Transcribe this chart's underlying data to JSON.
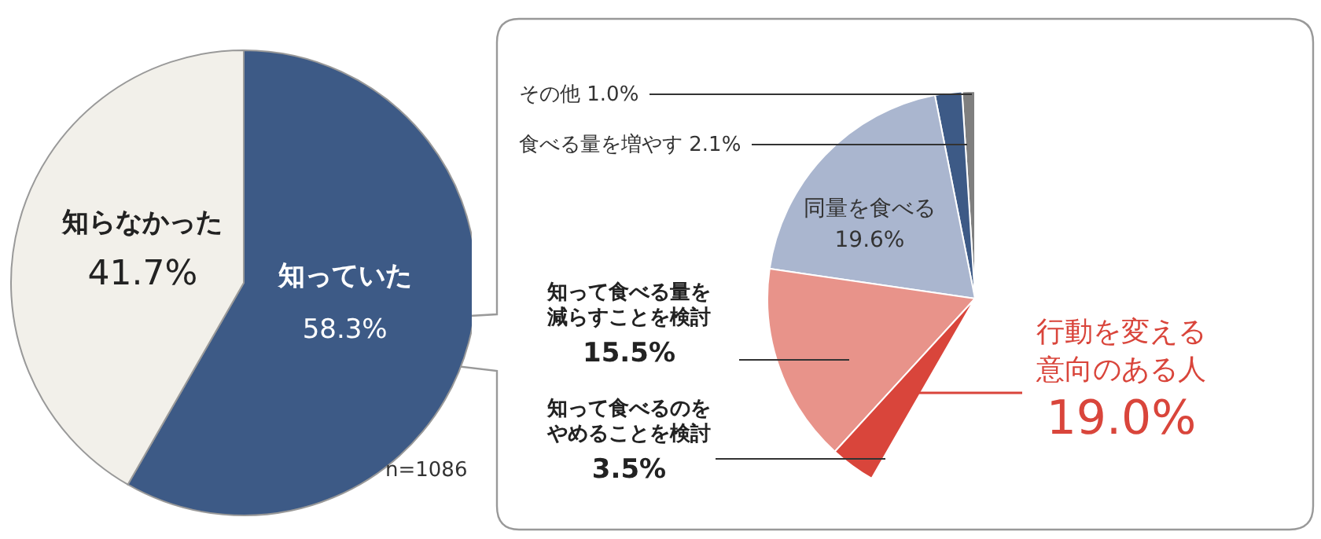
{
  "chart_data": [
    {
      "type": "pie",
      "categories": [
        "知っていた",
        "知らなかった"
      ],
      "values": [
        58.3,
        41.7
      ],
      "value_labels": [
        "58.3%",
        "41.7%"
      ],
      "colors": [
        "#3d5a86",
        "#f2f0ea"
      ],
      "annotations": [
        "n=1086"
      ]
    },
    {
      "type": "pie",
      "categories": [
        "その他",
        "食べる量を増やす",
        "同量を食べる",
        "知って食べる量を減らすことを検討",
        "知って食べるのをやめることを検討"
      ],
      "values": [
        1.0,
        2.1,
        19.6,
        15.5,
        3.5
      ],
      "value_labels": [
        "1.0%",
        "2.1%",
        "19.6%",
        "15.5%",
        "3.5%"
      ],
      "colors": [
        "#7f7f7f",
        "#3d5a86",
        "#aab6cf",
        "#e8938a",
        "#d9453b"
      ],
      "annotations": [
        "行動を変える意向のある人",
        "19.0%"
      ]
    }
  ]
}
